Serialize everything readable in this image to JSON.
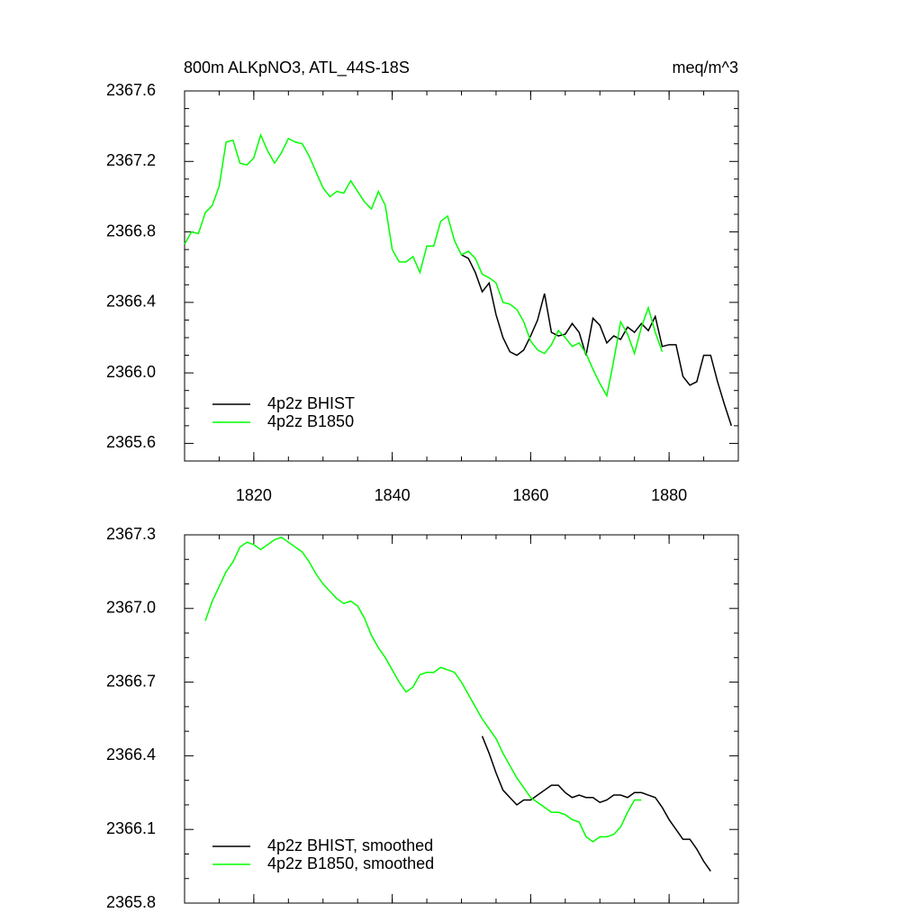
{
  "chart_data": [
    {
      "type": "line",
      "title": "800m ALKpNO3, ATL_44S-18S",
      "units": "meq/m^3",
      "x": [
        1810,
        1811,
        1812,
        1813,
        1814,
        1815,
        1816,
        1817,
        1818,
        1819,
        1820,
        1821,
        1822,
        1823,
        1824,
        1825,
        1826,
        1827,
        1828,
        1829,
        1830,
        1831,
        1832,
        1833,
        1834,
        1835,
        1836,
        1837,
        1838,
        1839,
        1840,
        1841,
        1842,
        1843,
        1844,
        1845,
        1846,
        1847,
        1848,
        1849,
        1850,
        1851,
        1852,
        1853,
        1854,
        1855,
        1856,
        1857,
        1858,
        1859,
        1860,
        1861,
        1862,
        1863,
        1864,
        1865,
        1866,
        1867,
        1868,
        1869,
        1870,
        1871,
        1872,
        1873,
        1874,
        1875,
        1876,
        1877,
        1878,
        1879,
        1880,
        1881,
        1882,
        1883,
        1884,
        1885,
        1886,
        1887,
        1888,
        1889
      ],
      "series": [
        {
          "name": "4p2z BHIST",
          "color": "#000000",
          "values": [
            null,
            null,
            null,
            null,
            null,
            null,
            null,
            null,
            null,
            null,
            null,
            null,
            null,
            null,
            null,
            null,
            null,
            null,
            null,
            null,
            null,
            null,
            null,
            null,
            null,
            null,
            null,
            null,
            null,
            null,
            null,
            null,
            null,
            null,
            null,
            null,
            null,
            null,
            null,
            null,
            2366.67,
            2366.65,
            2366.57,
            2366.46,
            2366.51,
            2366.33,
            2366.2,
            2366.12,
            2366.1,
            2366.13,
            2366.21,
            2366.3,
            2366.45,
            2366.23,
            2366.21,
            2366.22,
            2366.28,
            2366.23,
            2366.1,
            2366.31,
            2366.27,
            2366.17,
            2366.21,
            2366.19,
            2366.26,
            2366.23,
            2366.28,
            2366.24,
            2366.32,
            2366.15,
            2366.16,
            2366.16,
            2365.98,
            2365.93,
            2365.95,
            2366.1,
            2366.1,
            2365.95,
            2365.82,
            2365.7
          ]
        },
        {
          "name": "4p2z B1850",
          "color": "#00ff00",
          "values": [
            2366.73,
            2366.8,
            2366.79,
            2366.91,
            2366.95,
            2367.06,
            2367.31,
            2367.32,
            2367.19,
            2367.18,
            2367.22,
            2367.35,
            2367.26,
            2367.19,
            2367.25,
            2367.33,
            2367.31,
            2367.3,
            2367.23,
            2367.14,
            2367.05,
            2367.0,
            2367.03,
            2367.02,
            2367.09,
            2367.03,
            2366.97,
            2366.93,
            2367.03,
            2366.95,
            2366.7,
            2366.63,
            2366.63,
            2366.66,
            2366.57,
            2366.72,
            2366.72,
            2366.86,
            2366.89,
            2366.75,
            2366.67,
            2366.69,
            2366.65,
            2366.56,
            2366.54,
            2366.51,
            2366.4,
            2366.39,
            2366.36,
            2366.29,
            2366.18,
            2366.13,
            2366.11,
            2366.16,
            2366.24,
            2366.2,
            2366.15,
            2366.17,
            2366.11,
            2366.02,
            2365.94,
            2365.87,
            2366.07,
            2366.29,
            2366.22,
            2366.11,
            2366.26,
            2366.37,
            2366.23,
            2366.12,
            null,
            null,
            null,
            null,
            null,
            null,
            null,
            null,
            null,
            null
          ]
        }
      ],
      "xlim": [
        1810,
        1890
      ],
      "xticks": [
        1820,
        1840,
        1860,
        1880
      ],
      "show_xtick_labels": true,
      "ylim": [
        2365.5,
        2367.6
      ],
      "yticks": [
        {
          "value": 2365.6,
          "label": "2365.6"
        },
        {
          "value": 2366,
          "label": "2366.0"
        },
        2366.4,
        2366.8,
        2367.2,
        2367.6
      ],
      "legend": "lower left"
    },
    {
      "type": "line",
      "x": [
        1810,
        1811,
        1812,
        1813,
        1814,
        1815,
        1816,
        1817,
        1818,
        1819,
        1820,
        1821,
        1822,
        1823,
        1824,
        1825,
        1826,
        1827,
        1828,
        1829,
        1830,
        1831,
        1832,
        1833,
        1834,
        1835,
        1836,
        1837,
        1838,
        1839,
        1840,
        1841,
        1842,
        1843,
        1844,
        1845,
        1846,
        1847,
        1848,
        1849,
        1850,
        1851,
        1852,
        1853,
        1854,
        1855,
        1856,
        1857,
        1858,
        1859,
        1860,
        1861,
        1862,
        1863,
        1864,
        1865,
        1866,
        1867,
        1868,
        1869,
        1870,
        1871,
        1872,
        1873,
        1874,
        1875,
        1876,
        1877,
        1878,
        1879,
        1880,
        1881,
        1882,
        1883,
        1884,
        1885,
        1886,
        1887,
        1888,
        1889
      ],
      "series": [
        {
          "name": "4p2z BHIST, smoothed",
          "color": "#000000",
          "values": [
            null,
            null,
            null,
            null,
            null,
            null,
            null,
            null,
            null,
            null,
            null,
            null,
            null,
            null,
            null,
            null,
            null,
            null,
            null,
            null,
            null,
            null,
            null,
            null,
            null,
            null,
            null,
            null,
            null,
            null,
            null,
            null,
            null,
            null,
            null,
            null,
            null,
            null,
            null,
            null,
            null,
            null,
            null,
            2366.48,
            2366.41,
            2366.33,
            2366.26,
            2366.23,
            2366.2,
            2366.22,
            2366.22,
            2366.24,
            2366.26,
            2366.28,
            2366.28,
            2366.25,
            2366.23,
            2366.24,
            2366.23,
            2366.23,
            2366.21,
            2366.22,
            2366.24,
            2366.24,
            2366.23,
            2366.25,
            2366.25,
            2366.24,
            2366.23,
            2366.19,
            2366.14,
            2366.1,
            2366.06,
            2366.06,
            2366.02,
            2365.97,
            2365.93,
            null,
            null,
            null
          ]
        },
        {
          "name": "4p2z B1850, smoothed",
          "color": "#00ff00",
          "values": [
            null,
            null,
            null,
            2366.95,
            2367.03,
            2367.09,
            2367.15,
            2367.19,
            2367.25,
            2367.27,
            2367.26,
            2367.24,
            2367.26,
            2367.28,
            2367.29,
            2367.27,
            2367.25,
            2367.23,
            2367.19,
            2367.14,
            2367.1,
            2367.07,
            2367.04,
            2367.02,
            2367.03,
            2367.01,
            2366.96,
            2366.89,
            2366.84,
            2366.8,
            2366.75,
            2366.7,
            2366.66,
            2366.68,
            2366.73,
            2366.74,
            2366.74,
            2366.76,
            2366.75,
            2366.74,
            2366.7,
            2366.65,
            2366.6,
            2366.55,
            2366.51,
            2366.47,
            2366.41,
            2366.36,
            2366.31,
            2366.27,
            2366.23,
            2366.21,
            2366.19,
            2366.17,
            2366.17,
            2366.16,
            2366.14,
            2366.13,
            2366.07,
            2366.05,
            2366.07,
            2366.07,
            2366.08,
            2366.11,
            2366.17,
            2366.22,
            2366.22,
            null,
            null,
            null,
            null,
            null,
            null,
            null,
            null,
            null,
            null,
            null,
            null,
            null
          ]
        }
      ],
      "xlim": [
        1810,
        1890
      ],
      "xticks": [
        1820,
        1840,
        1860,
        1880
      ],
      "show_xtick_labels": false,
      "ylim": [
        2365.8,
        2367.3
      ],
      "yticks": [
        {
          "value": 2365.8,
          "label": "2365.8"
        },
        2366.1,
        2366.4,
        2366.7,
        {
          "value": 2367,
          "label": "2367.0"
        },
        2367.3
      ],
      "legend": "lower left"
    }
  ]
}
